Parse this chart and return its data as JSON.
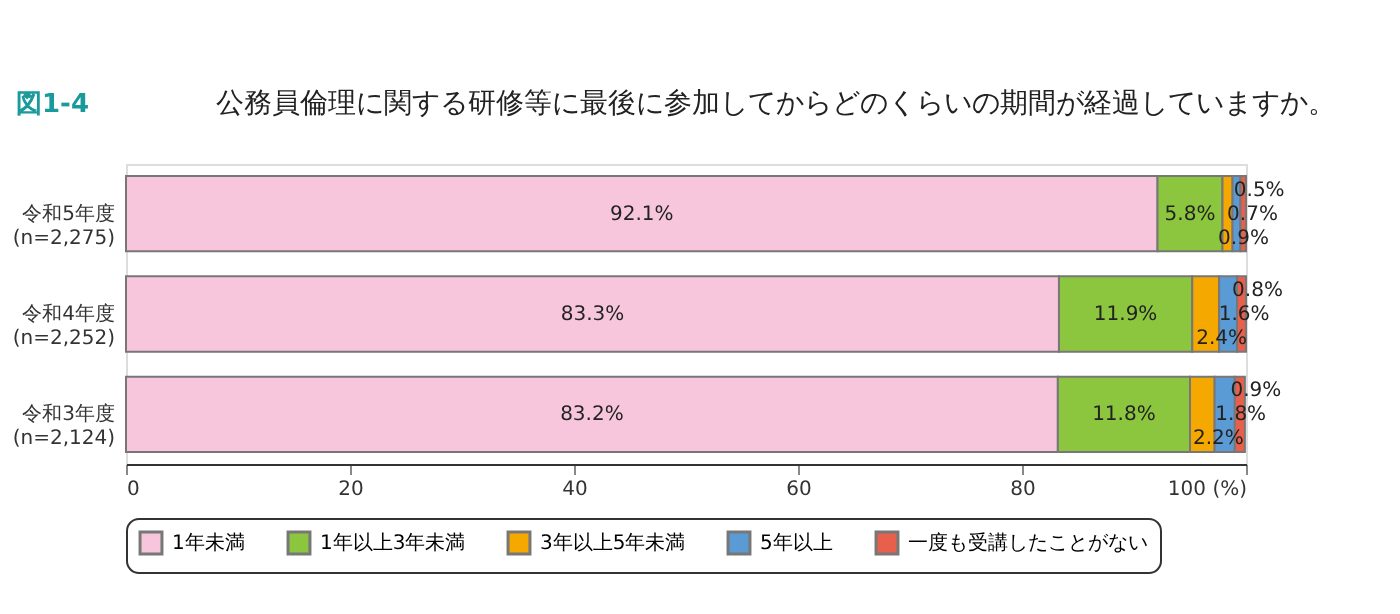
{
  "chart_data": {
    "type": "bar",
    "orientation": "horizontal",
    "stacked": true,
    "title": "公務員倫理に関する研修等に最後に参加してからどのくらいの期間が経過していますか。",
    "annotations": [
      "図1-4"
    ],
    "categories": [
      "令和5年度\n(n=2,275)",
      "令和4年度\n(n=2,252)",
      "令和3年度\n(n=2,124)"
    ],
    "series": [
      {
        "name": "1年未満",
        "color": "#f7c6dc",
        "values": [
          92.1,
          83.3,
          83.2
        ],
        "value_labels": [
          "92.1%",
          "83.3%",
          "83.2%"
        ]
      },
      {
        "name": "1年以上3年未満",
        "color": "#8cc63f",
        "values": [
          5.8,
          11.9,
          11.8
        ],
        "value_labels": [
          "5.8%",
          "11.9%",
          "11.8%"
        ]
      },
      {
        "name": "3年以上5年未満",
        "color": "#f5a800",
        "values": [
          0.9,
          2.4,
          2.2
        ],
        "value_labels": [
          "0.9%",
          "2.4%",
          "2.2%"
        ]
      },
      {
        "name": "5年以上",
        "color": "#5b9bd5",
        "values": [
          0.7,
          1.6,
          1.8
        ],
        "value_labels": [
          "0.7%",
          "1.6%",
          "1.8%"
        ]
      },
      {
        "name": "一度も受講したことがない",
        "color": "#e8604c",
        "values": [
          0.5,
          0.8,
          0.9
        ],
        "value_labels": [
          "0.5%",
          "0.8%",
          "0.9%"
        ]
      }
    ],
    "xlim": [
      0,
      100
    ],
    "xticks": [
      0,
      20,
      40,
      60,
      {
        "value": 80,
        "label": "80"
      },
      {
        "value": 100,
        "label": "100 (%)"
      }
    ],
    "grid": false,
    "legend": "bottom"
  }
}
